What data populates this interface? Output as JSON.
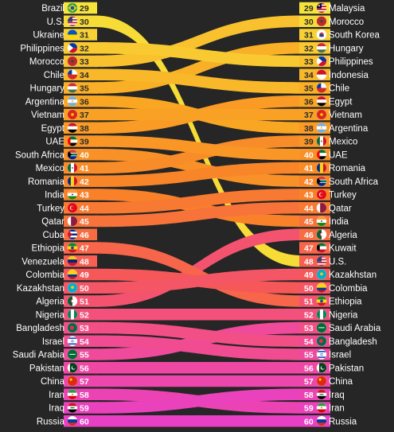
{
  "chart_data": {
    "type": "bump",
    "left_rank_start": 29,
    "left": [
      {
        "rank": 29,
        "country": "Brazil",
        "flag": "brazil-flag"
      },
      {
        "rank": 30,
        "country": "U.S.",
        "flag": "usa-flag"
      },
      {
        "rank": 31,
        "country": "Ukraine",
        "flag": "ukraine-flag"
      },
      {
        "rank": 32,
        "country": "Philippines",
        "flag": "philippines-flag"
      },
      {
        "rank": 33,
        "country": "Morocco",
        "flag": "morocco-flag"
      },
      {
        "rank": 34,
        "country": "Chile",
        "flag": "chile-flag"
      },
      {
        "rank": 35,
        "country": "Hungary",
        "flag": "hungary-flag"
      },
      {
        "rank": 36,
        "country": "Argentina",
        "flag": "argentina-flag"
      },
      {
        "rank": 37,
        "country": "Vietnam",
        "flag": "vietnam-flag"
      },
      {
        "rank": 38,
        "country": "Egypt",
        "flag": "egypt-flag"
      },
      {
        "rank": 39,
        "country": "UAE",
        "flag": "uae-flag"
      },
      {
        "rank": 40,
        "country": "South Africa",
        "flag": "south-africa-flag"
      },
      {
        "rank": 41,
        "country": "Mexico",
        "flag": "mexico-flag"
      },
      {
        "rank": 42,
        "country": "Romania",
        "flag": "romania-flag"
      },
      {
        "rank": 43,
        "country": "India",
        "flag": "india-flag"
      },
      {
        "rank": 44,
        "country": "Turkey",
        "flag": "turkey-flag"
      },
      {
        "rank": 45,
        "country": "Qatar",
        "flag": "qatar-flag"
      },
      {
        "rank": 46,
        "country": "Cuba",
        "flag": "cuba-flag"
      },
      {
        "rank": 47,
        "country": "Ethiopia",
        "flag": "ethiopia-flag"
      },
      {
        "rank": 48,
        "country": "Venezuela",
        "flag": "venezuela-flag"
      },
      {
        "rank": 49,
        "country": "Colombia",
        "flag": "colombia-flag"
      },
      {
        "rank": 50,
        "country": "Kazakhstan",
        "flag": "kazakhstan-flag"
      },
      {
        "rank": 51,
        "country": "Algeria",
        "flag": "algeria-flag"
      },
      {
        "rank": 52,
        "country": "Nigeria",
        "flag": "nigeria-flag"
      },
      {
        "rank": 53,
        "country": "Bangladesh",
        "flag": "bangladesh-flag"
      },
      {
        "rank": 54,
        "country": "Israel",
        "flag": "israel-flag"
      },
      {
        "rank": 55,
        "country": "Saudi Arabia",
        "flag": "saudi-arabia-flag"
      },
      {
        "rank": 56,
        "country": "Pakistan",
        "flag": "pakistan-flag"
      },
      {
        "rank": 57,
        "country": "China",
        "flag": "china-flag"
      },
      {
        "rank": 58,
        "country": "Iran",
        "flag": "iran-flag"
      },
      {
        "rank": 59,
        "country": "Iraq",
        "flag": "iraq-flag"
      },
      {
        "rank": 60,
        "country": "Russia",
        "flag": "russia-flag"
      }
    ],
    "right": [
      {
        "rank": 29,
        "country": "Malaysia",
        "flag": "malaysia-flag"
      },
      {
        "rank": 30,
        "country": "Morocco",
        "flag": "morocco-flag"
      },
      {
        "rank": 31,
        "country": "South Korea",
        "flag": "south-korea-flag"
      },
      {
        "rank": 32,
        "country": "Hungary",
        "flag": "hungary-flag"
      },
      {
        "rank": 33,
        "country": "Philippines",
        "flag": "philippines-flag"
      },
      {
        "rank": 34,
        "country": "Indonesia",
        "flag": "indonesia-flag"
      },
      {
        "rank": 35,
        "country": "Chile",
        "flag": "chile-flag"
      },
      {
        "rank": 36,
        "country": "Egypt",
        "flag": "egypt-flag"
      },
      {
        "rank": 37,
        "country": "Vietnam",
        "flag": "vietnam-flag"
      },
      {
        "rank": 38,
        "country": "Argentina",
        "flag": "argentina-flag"
      },
      {
        "rank": 39,
        "country": "Mexico",
        "flag": "mexico-flag"
      },
      {
        "rank": 40,
        "country": "UAE",
        "flag": "uae-flag"
      },
      {
        "rank": 41,
        "country": "Romania",
        "flag": "romania-flag"
      },
      {
        "rank": 42,
        "country": "South Africa",
        "flag": "south-africa-flag"
      },
      {
        "rank": 43,
        "country": "Turkey",
        "flag": "turkey-flag"
      },
      {
        "rank": 44,
        "country": "Qatar",
        "flag": "qatar-flag"
      },
      {
        "rank": 45,
        "country": "India",
        "flag": "india-flag"
      },
      {
        "rank": 46,
        "country": "Algeria",
        "flag": "algeria-flag"
      },
      {
        "rank": 47,
        "country": "Kuwait",
        "flag": "kuwait-flag"
      },
      {
        "rank": 48,
        "country": "U.S.",
        "flag": "usa-flag"
      },
      {
        "rank": 49,
        "country": "Kazakhstan",
        "flag": "kazakhstan-flag"
      },
      {
        "rank": 50,
        "country": "Colombia",
        "flag": "colombia-flag"
      },
      {
        "rank": 51,
        "country": "Ethiopia",
        "flag": "ethiopia-flag"
      },
      {
        "rank": 52,
        "country": "Nigeria",
        "flag": "nigeria-flag"
      },
      {
        "rank": 53,
        "country": "Saudi Arabia",
        "flag": "saudi-arabia-flag"
      },
      {
        "rank": 54,
        "country": "Bangladesh",
        "flag": "bangladesh-flag"
      },
      {
        "rank": 55,
        "country": "Israel",
        "flag": "israel-flag"
      },
      {
        "rank": 56,
        "country": "Pakistan",
        "flag": "pakistan-flag"
      },
      {
        "rank": 57,
        "country": "China",
        "flag": "china-flag"
      },
      {
        "rank": 58,
        "country": "Iraq",
        "flag": "iraq-flag"
      },
      {
        "rank": 59,
        "country": "Iran",
        "flag": "iran-flag"
      },
      {
        "rank": 60,
        "country": "Russia",
        "flag": "russia-flag"
      }
    ],
    "band_colors_by_rank": [
      {
        "rank": 29,
        "color": "#f7e43a"
      },
      {
        "rank": 36,
        "color": "#f9a623"
      },
      {
        "rank": 43,
        "color": "#f8812a"
      },
      {
        "rank": 49,
        "color": "#f6585a"
      },
      {
        "rank": 55,
        "color": "#f04a9c"
      },
      {
        "rank": 60,
        "color": "#e93fc4"
      }
    ],
    "background": "#262626"
  }
}
